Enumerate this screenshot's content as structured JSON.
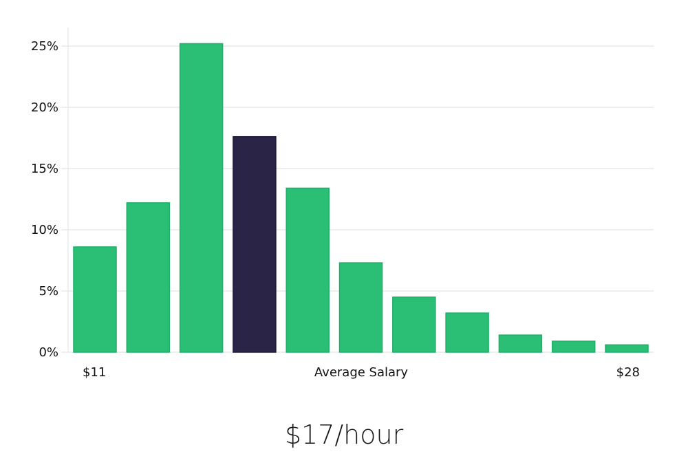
{
  "chart_data": {
    "type": "bar",
    "values": [
      8.6,
      12.2,
      25.2,
      17.6,
      13.4,
      7.3,
      4.5,
      3.2,
      1.4,
      0.9,
      0.6
    ],
    "highlight_index": 3,
    "ylim": [
      0,
      26.5
    ],
    "yticks": [
      0,
      5,
      10,
      15,
      20,
      25
    ],
    "ytick_suffix": "%",
    "x_labels": {
      "left": "$11",
      "center": "Average Salary",
      "right": "$28"
    },
    "colors": {
      "bar": "#2bbf76",
      "highlight": "#2a2547",
      "bar_stroke": "#1fae68",
      "highlight_stroke": "#1c1836"
    },
    "grid": true
  },
  "headline": "$17/hour"
}
